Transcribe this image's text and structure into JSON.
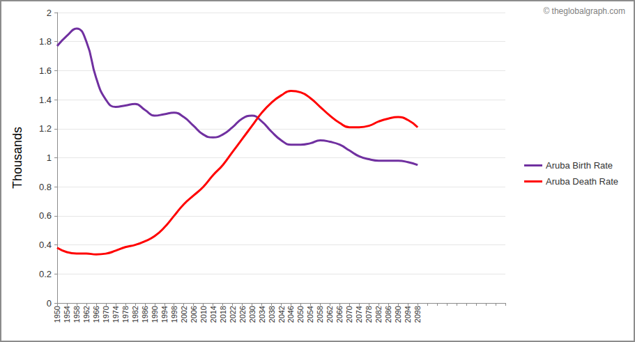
{
  "chart_data": {
    "type": "line",
    "annotation": "© theglobalgraph.com",
    "y_label": "Thousands",
    "categories": [
      "1950",
      "1954",
      "1958",
      "1962",
      "1966",
      "1970",
      "1974",
      "1978",
      "1982",
      "1986",
      "1990",
      "1994",
      "1998",
      "2002",
      "2006",
      "2010",
      "2014",
      "2018",
      "2022",
      "2026",
      "2030",
      "2034",
      "2038",
      "2042",
      "2046",
      "2050",
      "2054",
      "2058",
      "2062",
      "2066",
      "2070",
      "2074",
      "2078",
      "2082",
      "2086",
      "2090",
      "2094",
      "2098",
      null,
      null,
      null,
      null,
      null,
      null,
      null,
      null,
      null
    ],
    "series": [
      {
        "name": "Aruba Birth Rate",
        "color": "#7030a0",
        "values": [
          1.77,
          1.84,
          1.89,
          1.8,
          1.55,
          1.4,
          1.35,
          1.36,
          1.37,
          1.33,
          1.29,
          1.3,
          1.31,
          1.28,
          1.22,
          1.16,
          1.14,
          1.16,
          1.21,
          1.27,
          1.29,
          1.25,
          1.18,
          1.12,
          1.09,
          1.09,
          1.1,
          1.12,
          1.11,
          1.09,
          1.05,
          1.01,
          0.99,
          0.98,
          0.98,
          0.98,
          0.97,
          0.95,
          null,
          null,
          null,
          null,
          null,
          null,
          null,
          null,
          null
        ]
      },
      {
        "name": "Aruba Death Rate",
        "color": "#ff0000",
        "values": [
          0.38,
          0.35,
          0.34,
          0.34,
          0.335,
          0.34,
          0.36,
          0.385,
          0.4,
          0.425,
          0.46,
          0.52,
          0.6,
          0.68,
          0.74,
          0.8,
          0.88,
          0.95,
          1.04,
          1.13,
          1.22,
          1.31,
          1.38,
          1.43,
          1.46,
          1.45,
          1.41,
          1.35,
          1.29,
          1.24,
          1.21,
          1.21,
          1.22,
          1.25,
          1.27,
          1.28,
          1.26,
          1.21,
          null,
          null,
          null,
          null,
          null,
          null,
          null,
          null,
          null
        ]
      }
    ],
    "ylim": [
      0,
      2
    ],
    "yticks": [
      0,
      0.2,
      0.4,
      0.6,
      0.8,
      1,
      1.2,
      1.4,
      1.6,
      1.8,
      2
    ],
    "grid": true,
    "legend": "right",
    "line_style": "smooth"
  }
}
